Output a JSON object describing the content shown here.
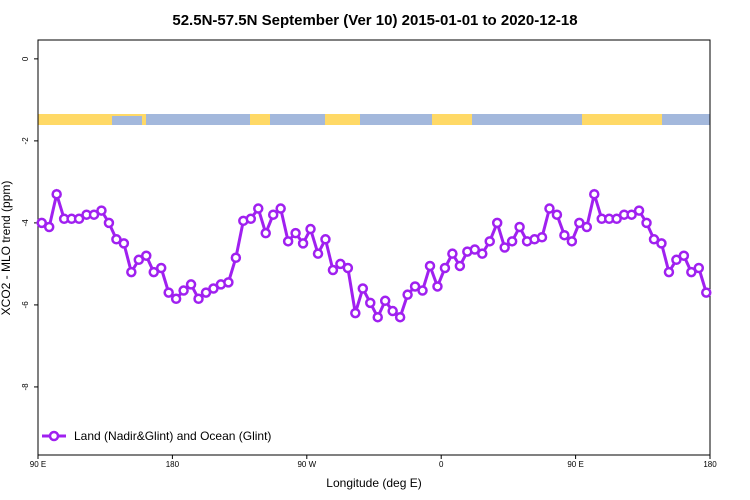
{
  "chart_data": {
    "type": "line",
    "title": "52.5N-57.5N September (Ver 10)   2015-01-01 to 2020-12-18",
    "x_label": "Longitude (deg E)",
    "y_label": "XCO2 - MLO trend (ppm)",
    "x": [
      92.5,
      97.5,
      102.5,
      107.5,
      112.5,
      117.5,
      122.5,
      127.5,
      132.5,
      137.5,
      142.5,
      147.5,
      152.5,
      157.5,
      162.5,
      167.5,
      172.5,
      177.5,
      182.5,
      187.5,
      192.5,
      197.5,
      202.5,
      207.5,
      212.5,
      217.5,
      222.5,
      227.5,
      232.5,
      237.5,
      242.5,
      247.5,
      252.5,
      257.5,
      262.5,
      267.5,
      272.5,
      277.5,
      282.5,
      287.5,
      292.5,
      297.5,
      302.5,
      307.5,
      312.5,
      317.5,
      322.5,
      327.5,
      332.5,
      337.5,
      342.5,
      347.5,
      352.5,
      357.5,
      362.5,
      367.5,
      372.5,
      377.5,
      382.5,
      387.5,
      392.5,
      397.5,
      402.5,
      407.5,
      412.5,
      417.5,
      422.5,
      427.5,
      432.5,
      437.5,
      442.5,
      447.5,
      452.5,
      457.5,
      462.5,
      467.5,
      472.5,
      477.5,
      482.5,
      487.5,
      492.5,
      497.5,
      502.5,
      507.5,
      512.5,
      517.5,
      522.5,
      527.5,
      532.5,
      537.5
    ],
    "series": [
      {
        "name": "Land (Nadir&Glint) and Ocean (Glint)",
        "color": "#a020f0",
        "values": [
          -4.0,
          -4.1,
          -3.3,
          -3.9,
          -3.9,
          -3.9,
          -3.8,
          -3.8,
          -3.7,
          -4.0,
          -4.4,
          -4.5,
          -5.2,
          -4.9,
          -4.8,
          -5.2,
          -5.1,
          -5.7,
          -5.85,
          -5.65,
          -5.5,
          -5.85,
          -5.7,
          -5.6,
          -5.5,
          -5.45,
          -4.85,
          -3.95,
          -3.9,
          -3.65,
          -4.25,
          -3.8,
          -3.65,
          -4.45,
          -4.25,
          -4.5,
          -4.15,
          -4.75,
          -4.4,
          -5.15,
          -5.0,
          -5.1,
          -6.2,
          -5.6,
          -5.95,
          -6.3,
          -5.9,
          -6.15,
          -6.3,
          -5.75,
          -5.55,
          -5.65,
          -5.05,
          -5.55,
          -5.1,
          -4.75,
          -5.05,
          -4.7,
          -4.65,
          -4.75,
          -4.45,
          -4.0,
          -4.6,
          -4.45,
          -4.1,
          -4.45,
          -4.4,
          -4.35,
          -3.65,
          -3.8,
          -4.3,
          -4.45,
          -4.0,
          -4.1,
          -3.3,
          -3.9,
          -3.9,
          -3.9,
          -3.8,
          -3.8,
          -3.7,
          -4.0,
          -4.4,
          -4.5,
          -5.2,
          -4.9,
          -4.8,
          -5.2,
          -5.1,
          -5.7
        ]
      }
    ],
    "xlim": [
      90,
      540
    ],
    "xticks": [
      {
        "value": 90,
        "label": "90 E"
      },
      180,
      {
        "value": 270,
        "label": "90 W"
      },
      {
        "value": 360,
        "label": "0"
      },
      {
        "value": 450,
        "label": "90 E"
      },
      {
        "value": 540,
        "label": "180"
      }
    ],
    "ylim": [
      -9.66,
      0.46
    ],
    "yticks": [
      0,
      -2,
      -4,
      -6,
      -8
    ],
    "legend": "bottomleft"
  }
}
